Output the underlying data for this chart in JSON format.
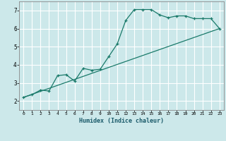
{
  "xlabel": "Humidex (Indice chaleur)",
  "xlim": [
    -0.5,
    23.5
  ],
  "ylim": [
    1.5,
    7.5
  ],
  "xticks": [
    0,
    1,
    2,
    3,
    4,
    5,
    6,
    7,
    8,
    9,
    10,
    11,
    12,
    13,
    14,
    15,
    16,
    17,
    18,
    19,
    20,
    21,
    22,
    23
  ],
  "yticks": [
    2,
    3,
    4,
    5,
    6,
    7
  ],
  "line_color": "#1a7a6a",
  "bg_color": "#cce8ea",
  "grid_color": "#ffffff",
  "curve1_x": [
    0,
    1,
    2,
    3,
    4,
    5,
    6,
    7,
    8,
    9,
    10,
    11,
    12,
    13,
    14,
    15,
    16,
    17,
    18,
    19,
    20,
    21,
    22,
    23
  ],
  "curve1_y": [
    2.2,
    2.35,
    2.6,
    2.55,
    3.4,
    3.45,
    3.1,
    3.8,
    3.7,
    3.75,
    4.45,
    5.15,
    6.45,
    7.05,
    7.05,
    7.05,
    6.75,
    6.6,
    6.7,
    6.7,
    6.55,
    6.55,
    6.55,
    6.0
  ],
  "curve2_x": [
    0,
    23
  ],
  "curve2_y": [
    2.2,
    6.0
  ]
}
